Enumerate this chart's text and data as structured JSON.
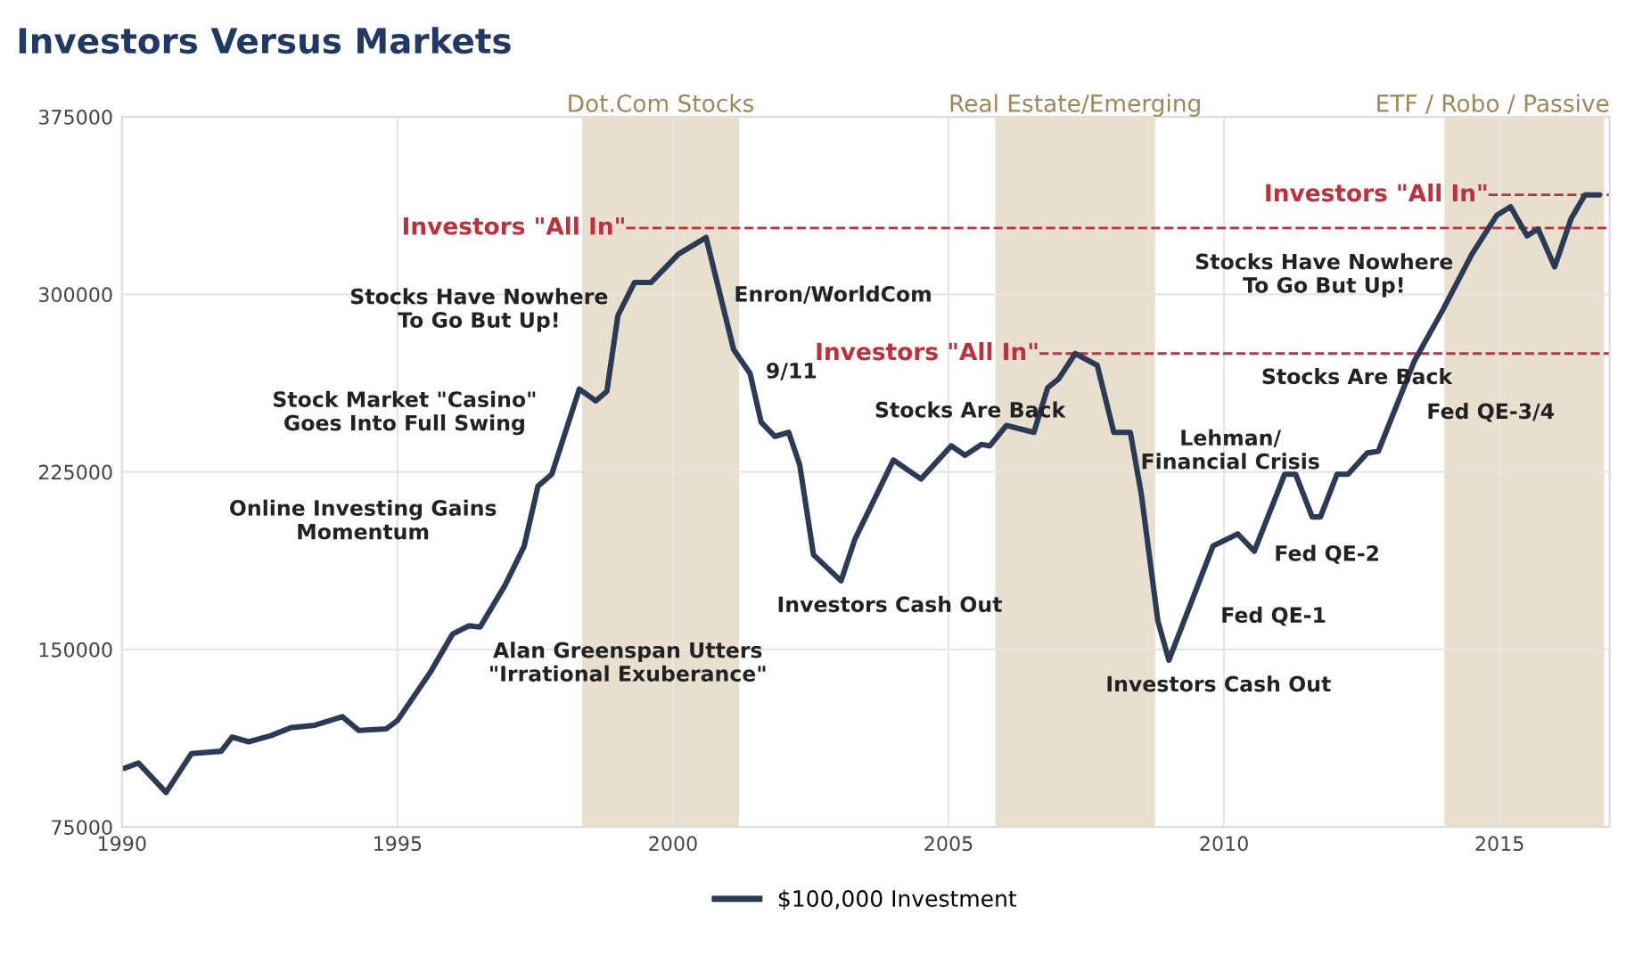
{
  "chart_data": {
    "type": "line",
    "title": "Investors Versus Markets",
    "x": [
      1990.06,
      1990.3,
      1990.8,
      1991.26,
      1991.8,
      1992.0,
      1992.3,
      1992.7,
      1993.07,
      1993.5,
      1994.0,
      1994.3,
      1994.8,
      1995.0,
      1995.6,
      1996.0,
      1996.3,
      1996.5,
      1996.95,
      1997.3,
      1997.55,
      1997.8,
      1998.3,
      1998.6,
      1998.8,
      1999.0,
      1999.3,
      1999.6,
      2000.1,
      2000.6,
      2001.1,
      2001.4,
      2001.6,
      2001.85,
      2002.1,
      2002.3,
      2002.55,
      2003.05,
      2003.3,
      2004.0,
      2004.5,
      2005.05,
      2005.3,
      2005.6,
      2005.75,
      2006.05,
      2006.55,
      2006.8,
      2007.0,
      2007.3,
      2007.7,
      2008.0,
      2008.3,
      2008.5,
      2008.8,
      2009.0,
      2009.8,
      2010.25,
      2010.55,
      2011.1,
      2011.3,
      2011.6,
      2011.75,
      2012.05,
      2012.25,
      2012.6,
      2012.8,
      2013.45,
      2013.97,
      2014.5,
      2014.95,
      2015.2,
      2015.5,
      2015.7,
      2016.0,
      2016.3,
      2016.55,
      2016.8
    ],
    "series": [
      {
        "name": "$100,000 Investment",
        "color": "#2b3a55",
        "values": [
          100000,
          102000,
          89600,
          106000,
          107000,
          113000,
          111000,
          113600,
          117000,
          118000,
          121600,
          115800,
          116500,
          120000,
          140500,
          156500,
          160000,
          159500,
          177000,
          193700,
          219000,
          224000,
          260000,
          255000,
          259000,
          291000,
          305000,
          305000,
          317000,
          324000,
          276700,
          266500,
          246000,
          240000,
          241700,
          228000,
          190000,
          179000,
          196500,
          230000,
          222000,
          236000,
          232000,
          236600,
          236000,
          244600,
          241700,
          260600,
          264300,
          275000,
          270000,
          241700,
          241700,
          215500,
          162000,
          145500,
          193700,
          198800,
          191500,
          224000,
          224000,
          206000,
          206000,
          224000,
          224000,
          233000,
          233700,
          271600,
          293400,
          317000,
          333400,
          337000,
          324700,
          327600,
          311600,
          332000,
          342000,
          342000
        ]
      }
    ],
    "xlim": [
      1990,
      2017
    ],
    "xticks": [
      1990,
      1995,
      2000,
      2005,
      2010,
      2015
    ],
    "ylim": [
      75000,
      375000
    ],
    "yticks": [
      75000,
      150000,
      225000,
      300000,
      375000
    ],
    "grid": true,
    "legend": "bottom",
    "bands": [
      {
        "axis": "x",
        "from": 1998.35,
        "to": 2001.2,
        "label": "Dot.Com Stocks",
        "color": "#e9dfcf"
      },
      {
        "axis": "x",
        "from": 2005.85,
        "to": 2008.75,
        "label": "Real Estate/Emerging",
        "color": "#e9dfcf"
      },
      {
        "axis": "x",
        "from": 2014.0,
        "to": 2016.9,
        "label": "ETF / Robo / Passive",
        "color": "#e9dfcf"
      }
    ],
    "ref_lines": [
      {
        "axis": "y",
        "value": 328000,
        "label": "Investors \"All In\"",
        "color": "#c0303a",
        "line_style": "dashed"
      },
      {
        "axis": "y",
        "value": 275000,
        "label": "Investors \"All In\"",
        "color": "#c0303a",
        "line_style": "dashed"
      },
      {
        "axis": "y",
        "value": 342000,
        "label": "Investors \"All In\"",
        "color": "#c0303a",
        "line_style": "dashed"
      }
    ],
    "annotations": [
      "Stocks Have Nowhere\nTo Go But Up!",
      "Stock Market \"Casino\"\nGoes Into Full Swing",
      "Online Investing Gains\nMomentum",
      "Alan Greenspan Utters\n\"Irrational Exuberance\"",
      "Enron/WorldCom",
      "9/11",
      "Investors Cash Out",
      "Stocks Are Back",
      "Lehman/\nFinancial Crisis",
      "Investors Cash Out",
      "Fed QE-1",
      "Fed QE-2",
      "Stocks Are Back",
      "Stocks Have Nowhere\nTo Go But Up!",
      "Fed QE-3/4"
    ]
  }
}
